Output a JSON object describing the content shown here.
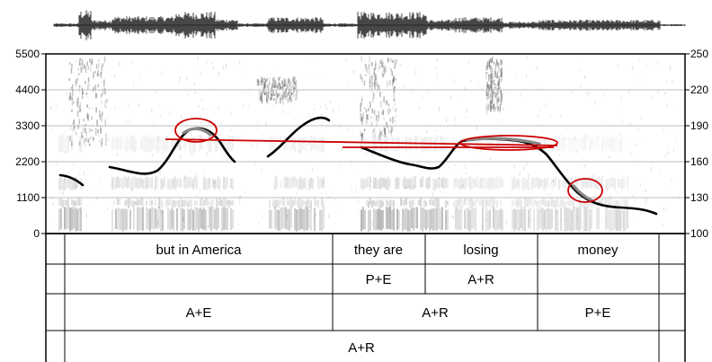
{
  "left_axis": {
    "ticks": [
      "0",
      "1100",
      "2200",
      "3300",
      "4400",
      "5500"
    ]
  },
  "right_axis": {
    "ticks": [
      "100",
      "130",
      "160",
      "190",
      "220",
      "250"
    ]
  },
  "tiers": [
    {
      "cells": [
        {
          "label": ""
        },
        {
          "label": "but in America"
        },
        {
          "label": "they are"
        },
        {
          "label": "losing"
        },
        {
          "label": "money"
        },
        {
          "label": ""
        }
      ]
    },
    {
      "cells": [
        {
          "label": ""
        },
        {
          "label": ""
        },
        {
          "label": "P+E"
        },
        {
          "label": "A+R"
        },
        {
          "label": ""
        },
        {
          "label": ""
        }
      ]
    },
    {
      "cells": [
        {
          "label": ""
        },
        {
          "label": "A+E"
        },
        {
          "label": "A+R"
        },
        {
          "label": "P+E"
        },
        {
          "label": ""
        }
      ]
    },
    {
      "cells": [
        {
          "label": ""
        },
        {
          "label": "A+R"
        },
        {
          "label": ""
        }
      ]
    }
  ],
  "colors": {
    "pitch": "#000000",
    "highlight": "#888888",
    "annotation": "#cc0000",
    "spectrogram": "#5a5a5a",
    "waveform": "#1a1a1a"
  }
}
